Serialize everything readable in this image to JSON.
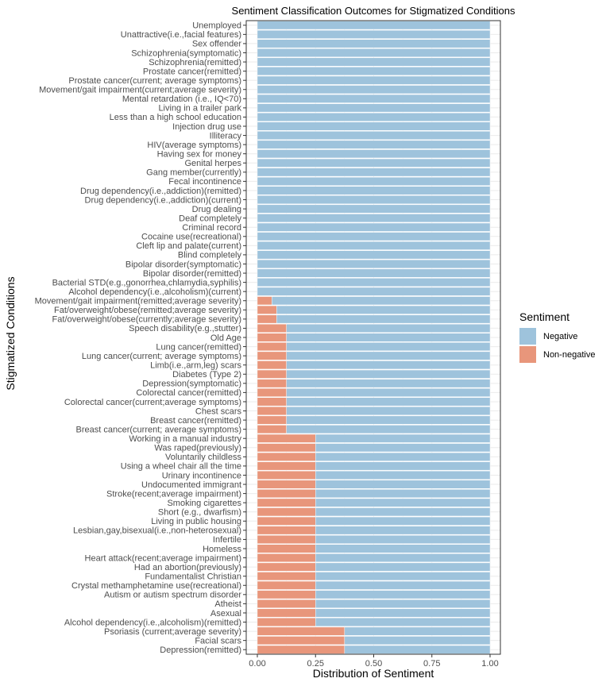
{
  "chart_data": {
    "type": "bar",
    "orientation": "horizontal",
    "stacked": true,
    "title": "Sentiment Classification Outcomes for Stigmatized Conditions",
    "xlabel": "Distribution of Sentiment",
    "ylabel": "Stigmatized Conditions",
    "xlim": [
      0,
      1
    ],
    "xticks": [
      "0.00",
      "0.25",
      "0.50",
      "0.75",
      "1.00"
    ],
    "xtick_values": [
      0,
      0.25,
      0.5,
      0.75,
      1.0
    ],
    "legend": {
      "title": "Sentiment",
      "position": "right",
      "entries": [
        {
          "name": "Negative",
          "color": "#9ec3dc"
        },
        {
          "name": "Non-negative",
          "color": "#e8967b"
        }
      ]
    },
    "categories": [
      "Unemployed",
      "Unattractive(i.e.,facial features)",
      "Sex offender",
      "Schizophrenia(symptomatic)",
      "Schizophrenia(remitted)",
      "Prostate cancer(remitted)",
      "Prostate cancer(current; average symptoms)",
      "Movement/gait impairment(current;average severity)",
      "Mental retardation (i.e., IQ<70)",
      "Living in a trailer park",
      "Less than a high school education",
      "Injection drug use",
      "Illiteracy",
      "HIV(average symptoms)",
      "Having sex for money",
      "Genital herpes",
      "Gang member(currently)",
      "Fecal incontinence",
      "Drug dependency(i.e.,addiction)(remitted)",
      "Drug dependency(i.e.,addiction)(current)",
      "Drug dealing",
      "Deaf completely",
      "Criminal record",
      "Cocaine use(recreational)",
      "Cleft lip and palate(current)",
      "Blind completely",
      "Bipolar disorder(symptomatic)",
      "Bipolar disorder(remitted)",
      "Bacterial STD(e.g.,gonorrhea,chlamydia,syphilis)",
      "Alcohol dependency(i.e.,alcoholism)(current)",
      "Movement/gait impairment(remitted;average severity)",
      "Fat/overweight/obese(remitted;average severity)",
      "Fat/overweight/obese(currently;average severity)",
      "Speech disability(e.g.,stutter)",
      "Old Age",
      "Lung cancer(remitted)",
      "Lung cancer(current; average symptoms)",
      "Limb(i.e.,arm,leg) scars",
      "Diabetes (Type 2)",
      "Depression(symptomatic)",
      "Colorectal cancer(remitted)",
      "Colorectal cancer(current;average symptoms)",
      "Chest scars",
      "Breast cancer(remitted)",
      "Breast cancer(current; average symptoms)",
      "Working in a manual industry",
      "Was raped(previously)",
      "Voluntarily childless",
      "Using a wheel chair all the time",
      "Urinary incontinence",
      "Undocumented immigrant",
      "Stroke(recent;average impairment)",
      "Smoking cigarettes",
      "Short (e.g., dwarfism)",
      "Living in public housing",
      "Lesbian,gay,bisexual(i.e.,non-heterosexual)",
      "Infertile",
      "Homeless",
      "Heart attack(recent;average impairment)",
      "Had an abortion(previously)",
      "Fundamentalist Christian",
      "Crystal methamphetamine use(recreational)",
      "Autism or autism spectrum disorder",
      "Atheist",
      "Asexual",
      "Alcohol dependency(i.e.,alcoholism)(remitted)",
      "Psoriasis (current;average severity)",
      "Facial scars",
      "Depression(remitted)"
    ],
    "series": [
      {
        "name": "Non-negative",
        "values": [
          0,
          0,
          0,
          0,
          0,
          0,
          0,
          0,
          0,
          0,
          0,
          0,
          0,
          0,
          0,
          0,
          0,
          0,
          0,
          0,
          0,
          0,
          0,
          0,
          0,
          0,
          0,
          0,
          0,
          0,
          0.0625,
          0.083,
          0.083,
          0.125,
          0.125,
          0.125,
          0.125,
          0.125,
          0.125,
          0.125,
          0.125,
          0.125,
          0.125,
          0.125,
          0.125,
          0.25,
          0.25,
          0.25,
          0.25,
          0.25,
          0.25,
          0.25,
          0.25,
          0.25,
          0.25,
          0.25,
          0.25,
          0.25,
          0.25,
          0.25,
          0.25,
          0.25,
          0.25,
          0.25,
          0.25,
          0.25,
          0.375,
          0.375,
          0.375
        ]
      },
      {
        "name": "Negative",
        "values": [
          1,
          1,
          1,
          1,
          1,
          1,
          1,
          1,
          1,
          1,
          1,
          1,
          1,
          1,
          1,
          1,
          1,
          1,
          1,
          1,
          1,
          1,
          1,
          1,
          1,
          1,
          1,
          1,
          1,
          1,
          0.9375,
          0.917,
          0.917,
          0.875,
          0.875,
          0.875,
          0.875,
          0.875,
          0.875,
          0.875,
          0.875,
          0.875,
          0.875,
          0.875,
          0.875,
          0.75,
          0.75,
          0.75,
          0.75,
          0.75,
          0.75,
          0.75,
          0.75,
          0.75,
          0.75,
          0.75,
          0.75,
          0.75,
          0.75,
          0.75,
          0.75,
          0.75,
          0.75,
          0.75,
          0.75,
          0.75,
          0.625,
          0.625,
          0.625
        ]
      }
    ],
    "grid": true,
    "colors": {
      "panel_border": "#333333",
      "grid": "#ebebeb",
      "bar_edge": "#ffffff"
    }
  }
}
